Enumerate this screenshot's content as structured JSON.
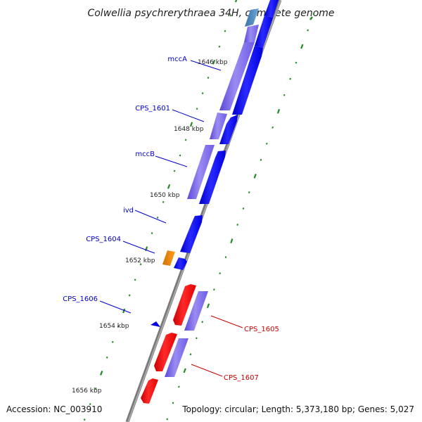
{
  "title": "Colwellia psychrerythraea 34H, complete genome",
  "footer": {
    "accession": "Accession: NC_003910",
    "topology": "Topology: circular; Length: 5,373,180 bp; Genes: 5,027"
  },
  "ticks": [
    "1646 kbp",
    "1648 kbp",
    "1650 kbp",
    "1652 kbp",
    "1654 kbp",
    "1656 kbp"
  ],
  "genes_blue": [
    "mccA",
    "CPS_1601",
    "mccB",
    "ivd",
    "CPS_1604",
    "CPS_1606"
  ],
  "genes_red": [
    "CPS_1605",
    "CPS_1607"
  ],
  "colors": {
    "backbone": "#808080",
    "forward_feature": "#0000ff",
    "forward_gene": "#7b68ee",
    "reverse_feature": "#ff0000",
    "reverse_gene": "#7b68ee",
    "other_feature": "#ff8c00",
    "teal_feature": "#4682b4",
    "tick_dots": "#228b22",
    "label_blue": "#0000c8",
    "label_red": "#c80000"
  }
}
